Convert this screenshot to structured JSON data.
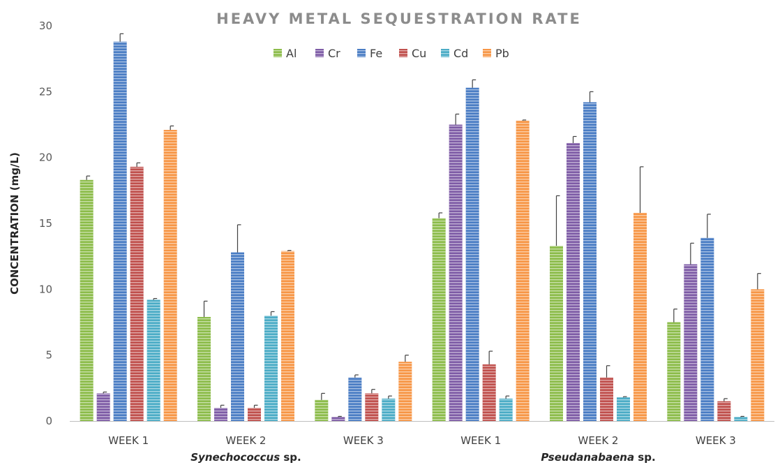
{
  "chart_data": {
    "type": "bar",
    "title": "HEAVY METAL SEQUESTRATION RATE",
    "ylabel": "CONCENTRATION (mg/L)",
    "xlabel": "",
    "ylim": [
      0,
      30
    ],
    "yticks": [
      0,
      5,
      10,
      15,
      20,
      25,
      30
    ],
    "legend_position": "top-center",
    "grid": false,
    "categories": [
      "WEEK 1",
      "WEEK 2",
      "WEEK 3",
      "WEEK 1",
      "WEEK 2",
      "WEEK 3"
    ],
    "groups": [
      {
        "name_italic": "Synechococcus",
        "name_suffix": " sp.",
        "categories": [
          0,
          1,
          2
        ]
      },
      {
        "name_italic": "Pseudanabaena",
        "name_suffix": " sp.",
        "categories": [
          3,
          4,
          5
        ]
      }
    ],
    "series": [
      {
        "name": "Al",
        "color": "#8cbc4a",
        "values": [
          18.3,
          7.9,
          1.6,
          15.4,
          13.3,
          7.5
        ],
        "errors": [
          0.3,
          1.2,
          0.5,
          0.4,
          3.8,
          1.0
        ]
      },
      {
        "name": "Cr",
        "color": "#7e5ca6",
        "values": [
          2.1,
          1.0,
          0.3,
          22.5,
          21.1,
          11.9
        ],
        "errors": [
          0.1,
          0.2,
          0.05,
          0.8,
          0.5,
          1.6
        ]
      },
      {
        "name": "Fe",
        "color": "#4a7dc4",
        "values": [
          28.8,
          12.8,
          3.3,
          25.3,
          24.2,
          13.9
        ],
        "errors": [
          0.6,
          2.1,
          0.2,
          0.6,
          0.8,
          1.8
        ]
      },
      {
        "name": "Cu",
        "color": "#c0504d",
        "values": [
          19.3,
          1.0,
          2.1,
          4.3,
          3.3,
          1.5
        ],
        "errors": [
          0.3,
          0.2,
          0.3,
          1.0,
          0.9,
          0.2
        ]
      },
      {
        "name": "Cd",
        "color": "#4bacc6",
        "values": [
          9.2,
          8.0,
          1.7,
          1.7,
          1.8,
          0.3
        ],
        "errors": [
          0.1,
          0.3,
          0.2,
          0.2,
          0.05,
          0.05
        ]
      },
      {
        "name": "Pb",
        "color": "#f79646",
        "values": [
          22.1,
          12.9,
          4.5,
          22.8,
          15.8,
          10.0
        ],
        "errors": [
          0.3,
          0.05,
          0.5,
          0.05,
          3.5,
          1.2
        ]
      }
    ]
  }
}
